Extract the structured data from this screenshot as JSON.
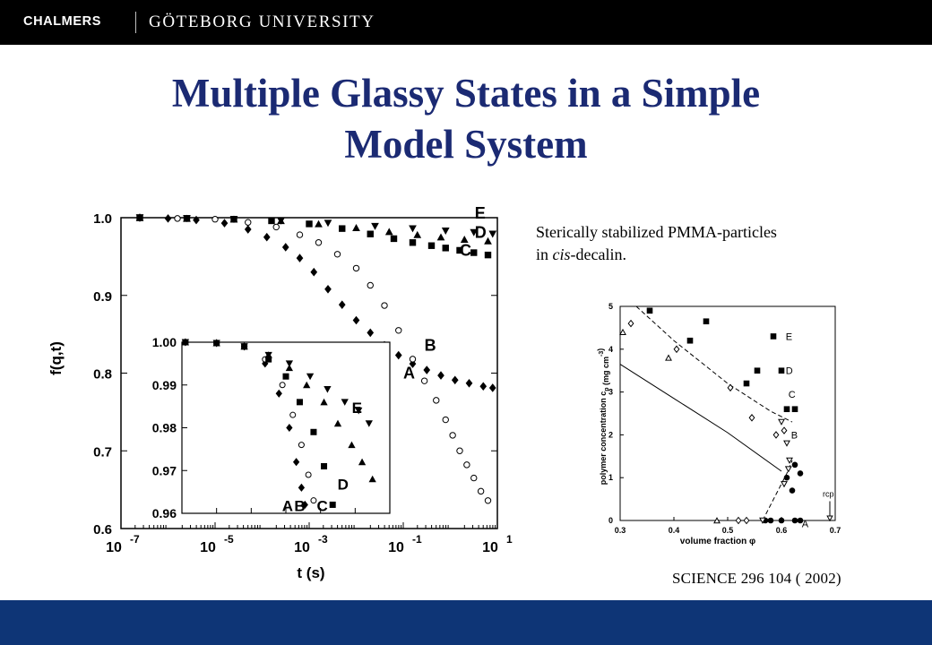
{
  "header": {
    "brand_left": "CHALMERS",
    "brand_right": "GÖTEBORG UNIVERSITY"
  },
  "slide": {
    "title_line1": "Multiple Glassy States in a Simple",
    "title_line2": "Model System",
    "caption_line1": "Sterically stabilized PMMA-particles",
    "caption_line2_pre": "in ",
    "caption_line2_italic": "cis",
    "caption_line2_post": "-decalin.",
    "reference": "SCIENCE 296 104 ( 2002)"
  },
  "colors": {
    "title": "#1b2a73",
    "topbar": "#000000",
    "footer": "#0e3576"
  },
  "chart_data": [
    {
      "type": "scatter",
      "xlabel": "t (s)",
      "ylabel": "f(q,t)",
      "xscale": "log",
      "xlim": [
        1e-07,
        10
      ],
      "ylim": [
        0.6,
        1.0
      ],
      "xticks": [
        {
          "label": "10",
          "exp": "-7",
          "value": -7
        },
        {
          "label": "10",
          "exp": "-5",
          "value": -5
        },
        {
          "label": "10",
          "exp": "-3",
          "value": -3
        },
        {
          "label": "10",
          "exp": "-1",
          "value": -1
        },
        {
          "label": "10",
          "exp": "1",
          "value": 1
        }
      ],
      "yticks": [
        "0.6",
        "0.7",
        "0.8",
        "0.9",
        "1.0"
      ],
      "series": [
        {
          "name": "A",
          "marker": "diamond-filled",
          "logt": [
            -6.6,
            -6.0,
            -5.4,
            -4.8,
            -4.3,
            -3.9,
            -3.5,
            -3.2,
            -2.9,
            -2.6,
            -2.3,
            -2.0,
            -1.7,
            -1.4,
            -1.1,
            -0.8,
            -0.5,
            -0.2,
            0.1,
            0.4,
            0.7,
            0.9
          ],
          "f": [
            1.0,
            0.999,
            0.997,
            0.993,
            0.985,
            0.975,
            0.962,
            0.948,
            0.93,
            0.908,
            0.888,
            0.868,
            0.852,
            0.836,
            0.823,
            0.812,
            0.804,
            0.797,
            0.791,
            0.787,
            0.783,
            0.781
          ]
        },
        {
          "name": "B",
          "marker": "circle-open",
          "logt": [
            -6.6,
            -5.8,
            -5.0,
            -4.3,
            -3.7,
            -3.2,
            -2.8,
            -2.4,
            -2.0,
            -1.7,
            -1.4,
            -1.1,
            -0.8,
            -0.55,
            -0.3,
            -0.1,
            0.05,
            0.2,
            0.35,
            0.5,
            0.65,
            0.8
          ],
          "f": [
            1.0,
            0.999,
            0.998,
            0.994,
            0.988,
            0.978,
            0.968,
            0.953,
            0.935,
            0.913,
            0.887,
            0.855,
            0.818,
            0.79,
            0.765,
            0.74,
            0.72,
            0.7,
            0.682,
            0.665,
            0.648,
            0.636
          ]
        },
        {
          "name": "C",
          "marker": "square-filled",
          "logt": [
            -6.6,
            -5.6,
            -4.6,
            -3.8,
            -3.0,
            -2.3,
            -1.7,
            -1.2,
            -0.8,
            -0.4,
            -0.1,
            0.2,
            0.5,
            0.8
          ],
          "f": [
            1.0,
            0.999,
            0.998,
            0.996,
            0.992,
            0.986,
            0.979,
            0.973,
            0.968,
            0.964,
            0.961,
            0.958,
            0.955,
            0.952
          ]
        },
        {
          "name": "D",
          "marker": "triangle-filled",
          "logt": [
            -6.6,
            -5.6,
            -4.6,
            -3.6,
            -2.8,
            -2.0,
            -1.3,
            -0.7,
            -0.2,
            0.3,
            0.8
          ],
          "f": [
            1.0,
            0.999,
            0.998,
            0.996,
            0.992,
            0.987,
            0.982,
            0.978,
            0.975,
            0.972,
            0.97
          ]
        },
        {
          "name": "E",
          "marker": "triangle-down-filled",
          "logt": [
            -6.6,
            -5.6,
            -4.6,
            -3.6,
            -2.6,
            -1.6,
            -0.8,
            -0.1,
            0.5,
            0.9
          ],
          "f": [
            1.0,
            0.999,
            0.998,
            0.996,
            0.993,
            0.989,
            0.986,
            0.983,
            0.981,
            0.979
          ]
        }
      ],
      "annotations": [
        "A",
        "B",
        "C",
        "D",
        "E"
      ]
    },
    {
      "type": "scatter",
      "xscale": "log",
      "xlim": [
        1e-07,
        0.1
      ],
      "ylim": [
        0.96,
        1.0
      ],
      "yticks": [
        "0.96",
        "0.97",
        "0.98",
        "0.99",
        "1.00"
      ],
      "series": [
        {
          "name": "A",
          "marker": "diamond-filled",
          "logt": [
            -6.9,
            -6.0,
            -5.2,
            -4.6,
            -4.2,
            -3.9,
            -3.7,
            -3.55,
            -3.45
          ],
          "f": [
            1.0,
            0.9998,
            0.999,
            0.995,
            0.988,
            0.98,
            0.972,
            0.966,
            0.962
          ]
        },
        {
          "name": "B",
          "marker": "circle-open",
          "logt": [
            -6.9,
            -6.0,
            -5.2,
            -4.6,
            -4.1,
            -3.8,
            -3.55,
            -3.35,
            -3.2
          ],
          "f": [
            1.0,
            0.9998,
            0.999,
            0.996,
            0.99,
            0.983,
            0.976,
            0.969,
            0.963
          ]
        },
        {
          "name": "C",
          "marker": "square-filled",
          "logt": [
            -6.9,
            -6.0,
            -5.2,
            -4.5,
            -4.0,
            -3.6,
            -3.2,
            -2.9,
            -2.65
          ],
          "f": [
            1.0,
            0.9998,
            0.999,
            0.996,
            0.992,
            0.986,
            0.979,
            0.971,
            0.962
          ]
        },
        {
          "name": "D",
          "marker": "triangle-filled",
          "logt": [
            -6.9,
            -6.0,
            -5.2,
            -4.5,
            -3.9,
            -3.4,
            -2.9,
            -2.5,
            -2.1,
            -1.8,
            -1.5
          ],
          "f": [
            1.0,
            0.9998,
            0.999,
            0.997,
            0.994,
            0.99,
            0.986,
            0.981,
            0.976,
            0.972,
            0.968
          ]
        },
        {
          "name": "E",
          "marker": "triangle-down-filled",
          "logt": [
            -6.9,
            -6.0,
            -5.2,
            -4.5,
            -3.9,
            -3.3,
            -2.8,
            -2.3,
            -1.9,
            -1.6
          ],
          "f": [
            1.0,
            0.9998,
            0.999,
            0.997,
            0.995,
            0.992,
            0.989,
            0.986,
            0.984,
            0.981
          ]
        }
      ],
      "annotations": [
        "A",
        "B",
        "C",
        "D",
        "E"
      ]
    },
    {
      "type": "scatter",
      "xlabel": "volume fraction φ",
      "ylabel_parts": [
        "polymer concentration c",
        "p",
        " (mg cm",
        "-3",
        ")"
      ],
      "xlim": [
        0.3,
        0.7
      ],
      "ylim": [
        0,
        5
      ],
      "xticks": [
        "0.3",
        "0.4",
        "0.5",
        "0.6",
        "0.7"
      ],
      "yticks": [
        "0",
        "1",
        "2",
        "3",
        "4",
        "5"
      ],
      "series": [
        {
          "marker": "square-filled",
          "x": [
            0.355,
            0.43,
            0.46,
            0.535,
            0.555,
            0.585,
            0.6,
            0.61,
            0.625
          ],
          "y": [
            4.9,
            4.2,
            4.65,
            3.2,
            3.5,
            4.3,
            3.5,
            2.6,
            2.6
          ]
        },
        {
          "marker": "diamond-open",
          "x": [
            0.32,
            0.405,
            0.505,
            0.545,
            0.59,
            0.605
          ],
          "y": [
            4.6,
            4.0,
            3.1,
            2.4,
            2.0,
            2.1
          ]
        },
        {
          "marker": "triangle-open",
          "x": [
            0.305,
            0.39,
            0.48
          ],
          "y": [
            4.4,
            3.8,
            0.0
          ]
        },
        {
          "marker": "triangle-down-open",
          "x": [
            0.6,
            0.61,
            0.615,
            0.613,
            0.605
          ],
          "y": [
            2.3,
            1.8,
            1.4,
            1.2,
            0.85
          ]
        },
        {
          "marker": "circle-filled",
          "x": [
            0.61,
            0.625,
            0.635,
            0.62,
            0.6,
            0.58,
            0.57
          ],
          "y": [
            1.0,
            1.3,
            1.1,
            0.7,
            0.0,
            0.0,
            0.0
          ]
        },
        {
          "marker": "diamond-open-baseline",
          "x": [
            0.52,
            0.535
          ],
          "y": [
            0.0,
            0.0
          ]
        },
        {
          "marker": "triangle-down-open-baseline",
          "x": [
            0.565
          ],
          "y": [
            0.0
          ]
        },
        {
          "marker": "circle-filled-baseline",
          "x": [
            0.625,
            0.635
          ],
          "y": [
            0.0,
            0.0
          ]
        }
      ],
      "lines": [
        {
          "style": "solid",
          "x": [
            0.3,
            0.4,
            0.5,
            0.6
          ],
          "y": [
            3.65,
            2.85,
            2.05,
            1.15
          ]
        },
        {
          "style": "dashed",
          "x": [
            0.33,
            0.4,
            0.5,
            0.58,
            0.62
          ],
          "y": [
            5.0,
            4.2,
            3.2,
            2.55,
            2.3
          ]
        },
        {
          "style": "dashed",
          "x": [
            0.565,
            0.61,
            0.62
          ],
          "y": [
            0.0,
            1.1,
            1.4
          ]
        }
      ],
      "labels": [
        "E",
        "D",
        "C",
        "B",
        "A"
      ],
      "rcp_label": "rcp"
    }
  ]
}
